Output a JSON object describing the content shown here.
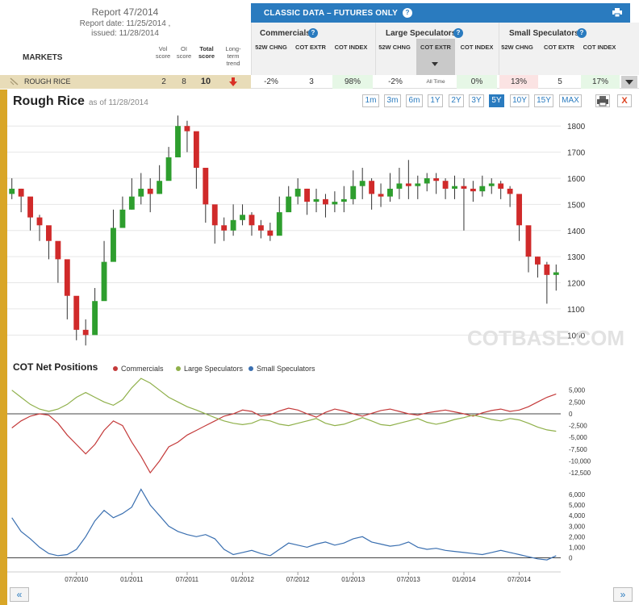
{
  "report": {
    "title": "Report 47/2014",
    "report_date": "Report date: 11/25/2014 ,",
    "issued": "issued: 11/28/2014"
  },
  "markets_label": "MARKETS",
  "score_headers": {
    "vol": "Vol score",
    "oi": "OI score",
    "total": "Total score",
    "trend": "Long-term trend"
  },
  "classic_bar": {
    "title": "CLASSIC DATA – FUTURES ONLY",
    "help": "?"
  },
  "groups": [
    {
      "label": "Commercials",
      "help": "?"
    },
    {
      "label": "Large Speculators",
      "help": "?"
    },
    {
      "label": "Small Speculators",
      "help": "?"
    }
  ],
  "col_headers": {
    "w52": "52W CHNG",
    "extr": "COT EXTR",
    "index": "COT INDEX",
    "extr_sub": "All Time"
  },
  "market_row": {
    "name": "ROUGH RICE",
    "vol": "2",
    "oi": "8",
    "total": "10",
    "comm": {
      "chng": "-2%",
      "extr": "3",
      "index": "98%"
    },
    "large": {
      "chng": "-2%",
      "extr": "All Time",
      "index": "0%"
    },
    "small": {
      "chng": "13%",
      "extr": "5",
      "index": "17%"
    }
  },
  "colors": {
    "accent": "#2a7bbf",
    "gold": "#d9a627",
    "commercials": "#c43a3a",
    "large_speculators": "#8fb04a",
    "small_speculators": "#3a6fb0",
    "positive_bg": "#e6f7e6",
    "negative_bg": "#fbe3e3",
    "trend_down": "#d93025"
  },
  "chart": {
    "title": "Rough Rice",
    "as_of": "as of 11/28/2014",
    "ranges": [
      "1m",
      "3m",
      "6m",
      "1Y",
      "2Y",
      "3Y",
      "5Y",
      "10Y",
      "15Y",
      "MAX"
    ],
    "active_range": "5Y",
    "print_icon": "printer-icon",
    "close_label": "X",
    "watermark": "COTBASE.COM",
    "cot_title": "COT Net Positions",
    "legend": [
      "Commercials",
      "Large Speculators",
      "Small Speculators"
    ],
    "nav_left": "«",
    "nav_right": "»"
  },
  "chart_data": [
    {
      "type": "candlestick",
      "title": "Rough Rice",
      "ylim": [
        930,
        1850
      ],
      "yticks": [
        1000,
        1100,
        1200,
        1300,
        1400,
        1500,
        1600,
        1700,
        1800
      ],
      "x": [
        "2009-12",
        "2010-01",
        "2010-02",
        "2010-03",
        "2010-04",
        "2010-05",
        "2010-06",
        "2010-07",
        "2010-08",
        "2010-09",
        "2010-10",
        "2010-11",
        "2010-12",
        "2011-01",
        "2011-02",
        "2011-03",
        "2011-04",
        "2011-05",
        "2011-06",
        "2011-07",
        "2011-08",
        "2011-09",
        "2011-10",
        "2011-11",
        "2011-12",
        "2012-01",
        "2012-02",
        "2012-03",
        "2012-04",
        "2012-05",
        "2012-06",
        "2012-07",
        "2012-08",
        "2012-09",
        "2012-10",
        "2012-11",
        "2012-12",
        "2013-01",
        "2013-02",
        "2013-03",
        "2013-04",
        "2013-05",
        "2013-06",
        "2013-07",
        "2013-08",
        "2013-09",
        "2013-10",
        "2013-11",
        "2013-12",
        "2014-01",
        "2014-02",
        "2014-03",
        "2014-04",
        "2014-05",
        "2014-06",
        "2014-07",
        "2014-08",
        "2014-09",
        "2014-10",
        "2014-11"
      ],
      "close": [
        1560,
        1530,
        1450,
        1420,
        1360,
        1290,
        1150,
        1020,
        1000,
        1130,
        1280,
        1410,
        1480,
        1530,
        1560,
        1540,
        1590,
        1680,
        1800,
        1780,
        1640,
        1500,
        1420,
        1400,
        1440,
        1460,
        1420,
        1400,
        1380,
        1470,
        1530,
        1560,
        1510,
        1520,
        1500,
        1510,
        1520,
        1570,
        1590,
        1540,
        1530,
        1560,
        1580,
        1570,
        1580,
        1600,
        1590,
        1560,
        1570,
        1560,
        1550,
        1570,
        1580,
        1560,
        1540,
        1420,
        1300,
        1270,
        1230,
        1240
      ],
      "high": [
        1600,
        1560,
        1480,
        1460,
        1400,
        1330,
        1220,
        1080,
        1060,
        1180,
        1360,
        1480,
        1530,
        1600,
        1620,
        1600,
        1650,
        1720,
        1840,
        1820,
        1700,
        1560,
        1470,
        1450,
        1500,
        1500,
        1470,
        1440,
        1430,
        1530,
        1570,
        1600,
        1560,
        1560,
        1540,
        1550,
        1570,
        1630,
        1640,
        1600,
        1580,
        1620,
        1640,
        1670,
        1610,
        1620,
        1620,
        1600,
        1610,
        1600,
        1590,
        1610,
        1600,
        1590,
        1570,
        1500,
        1340,
        1300,
        1280,
        1270
      ],
      "low": [
        1520,
        1470,
        1400,
        1360,
        1290,
        1200,
        1060,
        980,
        960,
        1040,
        1180,
        1320,
        1420,
        1480,
        1500,
        1470,
        1540,
        1600,
        1700,
        1700,
        1560,
        1430,
        1350,
        1360,
        1380,
        1420,
        1380,
        1370,
        1360,
        1420,
        1480,
        1500,
        1460,
        1470,
        1450,
        1470,
        1470,
        1500,
        1520,
        1480,
        1490,
        1510,
        1520,
        1520,
        1520,
        1550,
        1540,
        1520,
        1520,
        1400,
        1510,
        1530,
        1540,
        1520,
        1490,
        1360,
        1240,
        1220,
        1120,
        1170
      ]
    },
    {
      "type": "line",
      "title": "COT Net Positions",
      "ylim": [
        -13500,
        7000
      ],
      "yticks": [
        5000,
        2500,
        0,
        -2500,
        -5000,
        -7500,
        -10000,
        -12500
      ],
      "x": [
        "2009-12",
        "2010-01",
        "2010-02",
        "2010-03",
        "2010-04",
        "2010-05",
        "2010-06",
        "2010-07",
        "2010-08",
        "2010-09",
        "2010-10",
        "2010-11",
        "2010-12",
        "2011-01",
        "2011-02",
        "2011-03",
        "2011-04",
        "2011-05",
        "2011-06",
        "2011-07",
        "2011-08",
        "2011-09",
        "2011-10",
        "2011-11",
        "2011-12",
        "2012-01",
        "2012-02",
        "2012-03",
        "2012-04",
        "2012-05",
        "2012-06",
        "2012-07",
        "2012-08",
        "2012-09",
        "2012-10",
        "2012-11",
        "2012-12",
        "2013-01",
        "2013-02",
        "2013-03",
        "2013-04",
        "2013-05",
        "2013-06",
        "2013-07",
        "2013-08",
        "2013-09",
        "2013-10",
        "2013-11",
        "2013-12",
        "2014-01",
        "2014-02",
        "2014-03",
        "2014-04",
        "2014-05",
        "2014-06",
        "2014-07",
        "2014-08",
        "2014-09",
        "2014-10",
        "2014-11"
      ],
      "series": [
        {
          "name": "Commercials",
          "values": [
            -3000,
            -1500,
            -500,
            0,
            -300,
            -2000,
            -4500,
            -6500,
            -8500,
            -6500,
            -3500,
            -1500,
            -2500,
            -6000,
            -9000,
            -12500,
            -10000,
            -7000,
            -6000,
            -4500,
            -3500,
            -2500,
            -1500,
            -500,
            0,
            800,
            500,
            -500,
            -200,
            600,
            1200,
            800,
            0,
            -700,
            300,
            1000,
            600,
            0,
            -500,
            100,
            700,
            1000,
            500,
            0,
            -300,
            200,
            500,
            800,
            400,
            0,
            -500,
            200,
            700,
            1000,
            500,
            800,
            1500,
            2500,
            3500,
            4200
          ]
        },
        {
          "name": "Large Speculators",
          "values": [
            5000,
            3500,
            2000,
            1000,
            500,
            1000,
            2000,
            3500,
            4500,
            3500,
            2500,
            1800,
            3000,
            5500,
            7500,
            6500,
            5000,
            3500,
            2500,
            1500,
            800,
            0,
            -800,
            -1500,
            -2000,
            -2300,
            -2000,
            -1200,
            -1500,
            -2200,
            -2500,
            -2000,
            -1500,
            -1000,
            -2000,
            -2500,
            -2200,
            -1500,
            -800,
            -1500,
            -2300,
            -2500,
            -2000,
            -1500,
            -1000,
            -1800,
            -2200,
            -1800,
            -1200,
            -800,
            -300,
            -700,
            -1200,
            -1500,
            -1000,
            -1300,
            -2000,
            -2800,
            -3400,
            -3700
          ]
        },
        {
          "name": "Small Speculators",
          "values": [
            3800,
            2500,
            1800,
            1000,
            400,
            200,
            300,
            800,
            2000,
            3500,
            4500,
            3800,
            4200,
            4800,
            6500,
            5000,
            4000,
            3000,
            2500,
            2200,
            2000,
            2200,
            1800,
            800,
            300,
            500,
            700,
            400,
            200,
            800,
            1400,
            1200,
            1000,
            1300,
            1500,
            1200,
            1400,
            1800,
            2000,
            1500,
            1300,
            1100,
            1200,
            1500,
            1000,
            800,
            900,
            700,
            600,
            500,
            400,
            300,
            500,
            700,
            500,
            300,
            100,
            -100,
            -200,
            200
          ]
        }
      ]
    }
  ]
}
